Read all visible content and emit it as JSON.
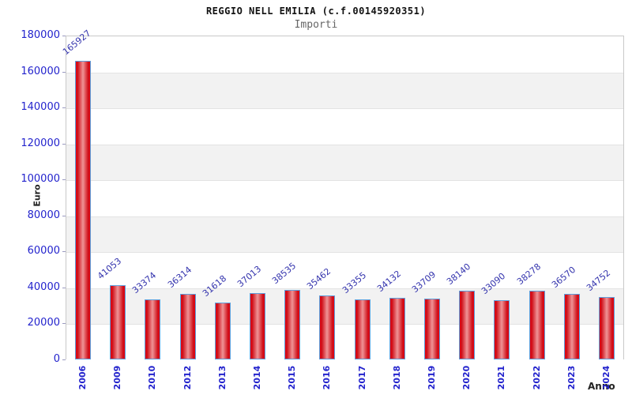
{
  "chart_data": {
    "type": "bar",
    "title": "REGGIO NELL EMILIA (c.f.00145920351)",
    "subtitle": "Importi",
    "xlabel": "Anno",
    "ylabel": "Euro",
    "categories": [
      "2006",
      "2009",
      "2010",
      "2012",
      "2013",
      "2014",
      "2015",
      "2016",
      "2017",
      "2018",
      "2019",
      "2020",
      "2021",
      "2022",
      "2023",
      "2024"
    ],
    "values": [
      165927,
      41053,
      33374,
      36314,
      31618,
      37013,
      38535,
      35462,
      33355,
      34132,
      33709,
      38140,
      33090,
      38278,
      36570,
      34752
    ],
    "ylim": [
      0,
      180000
    ],
    "ytick_step": 20000,
    "yticks": [
      0,
      20000,
      40000,
      60000,
      80000,
      100000,
      120000,
      140000,
      160000,
      180000
    ],
    "grid": "horizontal-bands",
    "legend": "none",
    "colors": {
      "bar_edge_red": "#e20613",
      "bar_center": "#ef9396",
      "bar_border_blue": "#5d9fdc",
      "axis_text_blue": "#2323cd",
      "value_label_blue": "#3333ad",
      "band_gray": "#f2f2f2",
      "gridline": "#e3e3e3",
      "plot_border": "#c9c9c9",
      "title_color": "#111111",
      "subtitle_color": "#666666"
    }
  }
}
